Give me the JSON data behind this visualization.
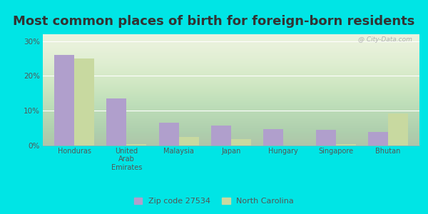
{
  "title": "Most common places of birth for foreign-born residents",
  "categories": [
    "Honduras",
    "United\nArab\nEmirates",
    "Malaysia",
    "Japan",
    "Hungary",
    "Singapore",
    "Bhutan"
  ],
  "zip_values": [
    26.0,
    13.5,
    6.5,
    5.8,
    4.8,
    4.5,
    3.8
  ],
  "nc_values": [
    25.0,
    0.4,
    2.5,
    1.8,
    0.0,
    0.5,
    9.2
  ],
  "zip_color": "#b09fcc",
  "nc_color": "#c8d9a0",
  "background_outer": "#00e5e5",
  "background_plot_top": "#e8f0d8",
  "background_plot_bottom": "#f5faf0",
  "title_fontsize": 13,
  "ylabel_ticks": [
    "0%",
    "10%",
    "20%",
    "30%"
  ],
  "ytick_vals": [
    0,
    10,
    20,
    30
  ],
  "ylim": [
    0,
    32
  ],
  "legend_zip": "Zip code 27534",
  "legend_nc": "North Carolina",
  "bar_width": 0.38,
  "watermark": "@ City-Data.com"
}
